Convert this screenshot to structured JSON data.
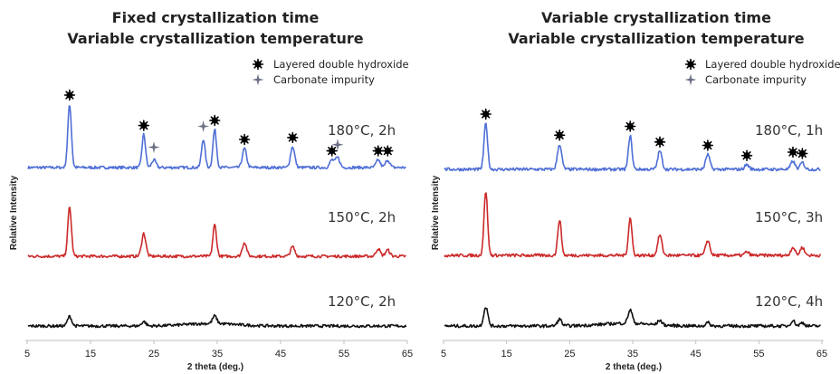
{
  "chart_data": [
    {
      "type": "line",
      "title": "Fixed crystallization time",
      "subtitle": "Variable crystallization temperature",
      "xlabel": "2 theta (deg.)",
      "ylabel": "Relative Intensity",
      "xlim": [
        5,
        65
      ],
      "x_ticks": [
        "5",
        "15",
        "25",
        "35",
        "45",
        "55",
        "65"
      ],
      "legend": {
        "placement": "top-right",
        "entries": [
          {
            "label": "Layered double hydroxide",
            "marker": "star-burst",
            "color": "#000000"
          },
          {
            "label": "Carbonate impurity",
            "marker": "four-point-star",
            "color": "#6d6f86"
          }
        ]
      },
      "series": [
        {
          "name": "180°C, 2h",
          "color": "#4f6fd6",
          "peaks": [
            {
              "x": 11.7,
              "h": 1.0
            },
            {
              "x": 23.4,
              "h": 0.52
            },
            {
              "x": 25.0,
              "h": 0.12
            },
            {
              "x": 32.8,
              "h": 0.45
            },
            {
              "x": 34.6,
              "h": 0.6
            },
            {
              "x": 39.3,
              "h": 0.3
            },
            {
              "x": 46.9,
              "h": 0.33
            },
            {
              "x": 53.1,
              "h": 0.12
            },
            {
              "x": 54.0,
              "h": 0.16
            },
            {
              "x": 60.4,
              "h": 0.12
            },
            {
              "x": 61.9,
              "h": 0.12
            }
          ],
          "ldh_markers": [
            11.7,
            23.4,
            34.6,
            39.3,
            46.9,
            53.1,
            60.4,
            61.9
          ],
          "carbonate_markers": [
            25.0,
            32.8,
            54.0
          ]
        },
        {
          "name": "150°C, 2h",
          "color": "#cc2a2a",
          "peaks": [
            {
              "x": 11.7,
              "h": 0.78
            },
            {
              "x": 23.4,
              "h": 0.36
            },
            {
              "x": 34.6,
              "h": 0.5
            },
            {
              "x": 39.3,
              "h": 0.22
            },
            {
              "x": 46.9,
              "h": 0.15
            },
            {
              "x": 60.4,
              "h": 0.12
            },
            {
              "x": 61.9,
              "h": 0.1
            }
          ]
        },
        {
          "name": "120°C, 2h",
          "color": "#111111",
          "peaks": [
            {
              "x": 11.7,
              "h": 0.15
            },
            {
              "x": 23.4,
              "h": 0.07
            },
            {
              "x": 34.6,
              "h": 0.12
            }
          ]
        }
      ]
    },
    {
      "type": "line",
      "title": "Variable crystallization time",
      "subtitle": "Variable crystallization temperature",
      "xlabel": "2 theta (deg.)",
      "ylabel": "Relative Intensity",
      "xlim": [
        5,
        65
      ],
      "x_ticks": [
        "5",
        "15",
        "25",
        "35",
        "45",
        "55",
        "65"
      ],
      "legend": {
        "placement": "top-right",
        "entries": [
          {
            "label": "Layered double hydroxide",
            "marker": "star-burst",
            "color": "#000000"
          },
          {
            "label": "Carbonate impurity",
            "marker": "four-point-star",
            "color": "#6d6f86"
          }
        ]
      },
      "series": [
        {
          "name": "180°C, 1h",
          "color": "#4f6fd6",
          "peaks": [
            {
              "x": 11.7,
              "h": 0.68
            },
            {
              "x": 23.4,
              "h": 0.37
            },
            {
              "x": 34.6,
              "h": 0.5
            },
            {
              "x": 39.3,
              "h": 0.27
            },
            {
              "x": 46.9,
              "h": 0.22
            },
            {
              "x": 53.1,
              "h": 0.07
            },
            {
              "x": 60.4,
              "h": 0.12
            },
            {
              "x": 61.9,
              "h": 0.1
            }
          ],
          "ldh_markers": [
            11.7,
            23.4,
            34.6,
            39.3,
            46.9,
            53.1,
            60.4,
            61.9
          ],
          "carbonate_markers": []
        },
        {
          "name": "150°C, 3h",
          "color": "#cc2a2a",
          "peaks": [
            {
              "x": 11.7,
              "h": 0.95
            },
            {
              "x": 23.4,
              "h": 0.53
            },
            {
              "x": 34.6,
              "h": 0.55
            },
            {
              "x": 39.3,
              "h": 0.3
            },
            {
              "x": 46.9,
              "h": 0.22
            },
            {
              "x": 53.1,
              "h": 0.05
            },
            {
              "x": 60.4,
              "h": 0.12
            },
            {
              "x": 61.9,
              "h": 0.12
            }
          ]
        },
        {
          "name": "120°C, 4h",
          "color": "#111111",
          "peaks": [
            {
              "x": 11.7,
              "h": 0.28
            },
            {
              "x": 23.4,
              "h": 0.1
            },
            {
              "x": 34.6,
              "h": 0.2
            },
            {
              "x": 39.3,
              "h": 0.07
            },
            {
              "x": 46.9,
              "h": 0.05
            },
            {
              "x": 60.4,
              "h": 0.08
            },
            {
              "x": 61.9,
              "h": 0.05
            }
          ]
        }
      ]
    }
  ]
}
